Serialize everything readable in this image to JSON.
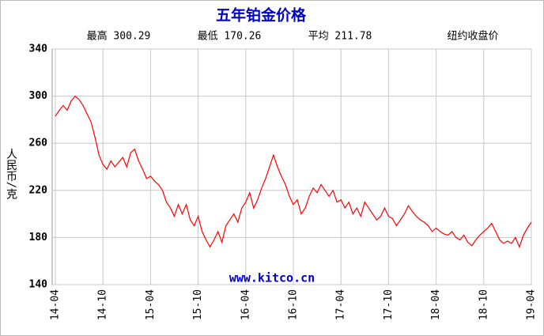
{
  "chart_data": {
    "type": "line",
    "title": "五年铂金价格",
    "stats": [
      "最高 300.29",
      "最低 170.26",
      "平均 211.78"
    ],
    "subtitle": "纽约收盘价",
    "ylabel": "人民币/克",
    "watermark": "www.kitco.cn",
    "xlim": [
      0,
      60
    ],
    "xticks": [
      {
        "value": 0,
        "label": "14-04"
      },
      {
        "value": 6,
        "label": "14-10"
      },
      {
        "value": 12,
        "label": "15-04"
      },
      {
        "value": 18,
        "label": "15-10"
      },
      {
        "value": 24,
        "label": "16-04"
      },
      {
        "value": 30,
        "label": "16-10"
      },
      {
        "value": 36,
        "label": "17-04"
      },
      {
        "value": 42,
        "label": "17-10"
      },
      {
        "value": 48,
        "label": "18-04"
      },
      {
        "value": 54,
        "label": "18-10"
      },
      {
        "value": 60,
        "label": "19-04"
      }
    ],
    "ylim": [
      140,
      340
    ],
    "yticks": [
      140,
      180,
      220,
      260,
      300,
      340
    ],
    "grid": true,
    "color": "#ff0000",
    "x": [
      0,
      0.5,
      1,
      1.5,
      2,
      2.5,
      3,
      3.5,
      4,
      4.5,
      5,
      5.5,
      6,
      6.5,
      7,
      7.5,
      8,
      8.5,
      9,
      9.5,
      10,
      10.5,
      11,
      11.5,
      12,
      12.5,
      13,
      13.5,
      14,
      14.5,
      15,
      15.5,
      16,
      16.5,
      17,
      17.5,
      18,
      18.5,
      19,
      19.5,
      20,
      20.5,
      21,
      21.5,
      22,
      22.5,
      23,
      23.5,
      24,
      24.5,
      25,
      25.5,
      26,
      26.5,
      27,
      27.5,
      28,
      28.5,
      29,
      29.5,
      30,
      30.5,
      31,
      31.5,
      32,
      32.5,
      33,
      33.5,
      34,
      34.5,
      35,
      35.5,
      36,
      36.5,
      37,
      37.5,
      38,
      38.5,
      39,
      39.5,
      40,
      40.5,
      41,
      41.5,
      42,
      42.5,
      43,
      43.5,
      44,
      44.5,
      45,
      45.5,
      46,
      46.5,
      47,
      47.5,
      48,
      48.5,
      49,
      49.5,
      50,
      50.5,
      51,
      51.5,
      52,
      52.5,
      53,
      53.5,
      54,
      54.5,
      55,
      55.5,
      56,
      56.5,
      57,
      57.5,
      58,
      58.5,
      59,
      59.5,
      60
    ],
    "values": [
      283,
      288,
      292,
      288,
      296,
      300,
      297,
      292,
      285,
      278,
      265,
      250,
      242,
      238,
      245,
      240,
      244,
      248,
      240,
      252,
      255,
      245,
      238,
      230,
      232,
      228,
      225,
      220,
      210,
      205,
      198,
      208,
      200,
      208,
      195,
      190,
      198,
      185,
      178,
      172,
      178,
      185,
      176,
      190,
      195,
      200,
      193,
      205,
      210,
      218,
      205,
      212,
      222,
      230,
      240,
      250,
      240,
      232,
      225,
      215,
      208,
      212,
      200,
      205,
      215,
      222,
      218,
      225,
      220,
      215,
      220,
      210,
      212,
      205,
      210,
      200,
      205,
      198,
      210,
      205,
      200,
      195,
      198,
      205,
      198,
      196,
      190,
      195,
      200,
      207,
      202,
      198,
      195,
      193,
      190,
      185,
      188,
      185,
      183,
      182,
      185,
      180,
      178,
      182,
      176,
      173,
      178,
      182,
      185,
      188,
      192,
      185,
      178,
      175,
      177,
      175,
      180,
      172,
      182,
      188,
      193
    ]
  }
}
